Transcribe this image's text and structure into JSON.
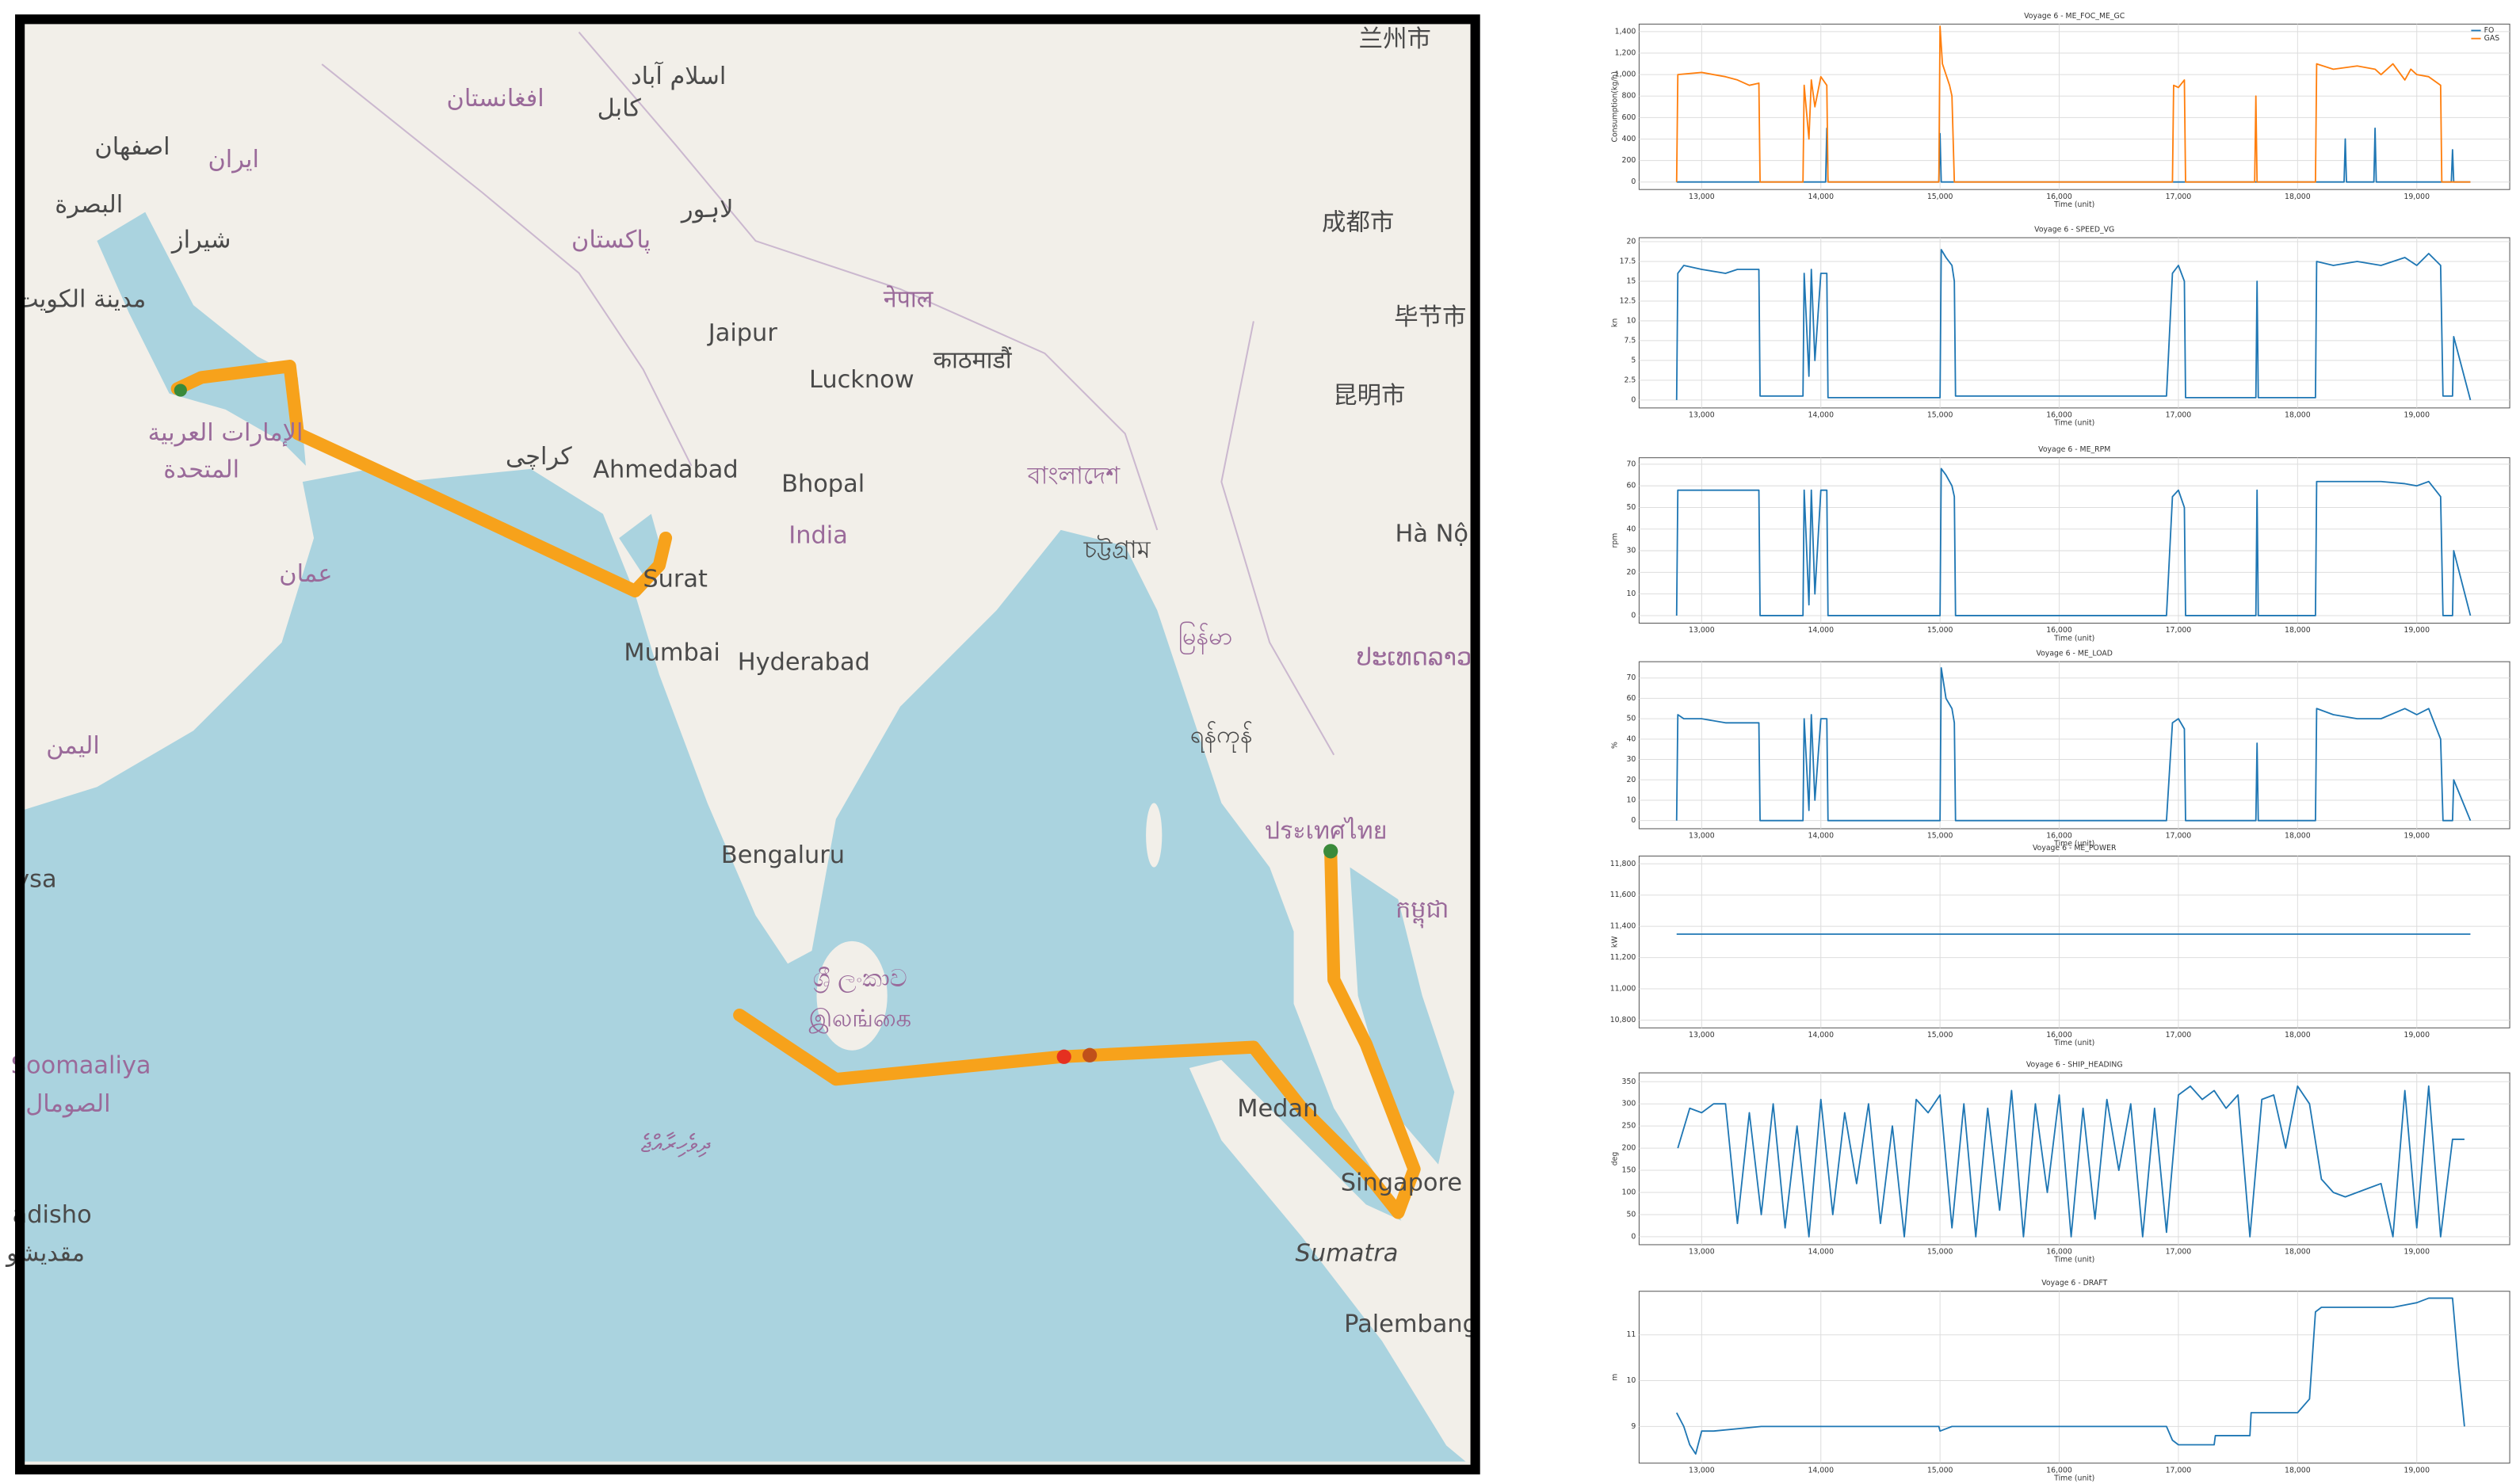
{
  "map": {
    "labels": [
      "اصفهان",
      "ایران",
      "البصرة",
      "شيراز",
      "مدينة الكويت",
      "افغانستان",
      "كابل",
      "اسلام آباد",
      "لاہور",
      "پاکستان",
      "नेपाल",
      "काठमाडौं",
      "Jaipur",
      "Lucknow",
      "كراچی",
      "Ahmedabad",
      "Bhopal",
      "India",
      "বাংলাদেশ",
      "চট্টগ্রাম",
      "Surat",
      "Mumbai",
      "Hyderabad",
      "الإمارات العربية",
      "المتحدة",
      "عمان",
      "اليمن",
      "မြန်မာ",
      "ရန်ကုန်",
      "ประเทศไทย",
      "Bengaluru",
      "ශ්‍රී ලංකාව",
      "இலங்கை",
      "Soomaaliya",
      "الصومال",
      "ދިވެހިރާއްޖެ",
      "Medan",
      "Singapore",
      "Sumatra",
      "Palembang",
      "adisho",
      "مقديشو",
      "成都市",
      "毕节市",
      "昆明市",
      "兰州市",
      "Hà Nội",
      "ປະເທດລາວ",
      "កម្ពុជា",
      "ysa"
    ]
  },
  "chart_data": [
    {
      "type": "line",
      "title": "Voyage 6 - ME_FOC_ME_GC",
      "xlabel": "Time (unit)",
      "ylabel": "Consumption(kg/h)",
      "grid": true,
      "legend": "upper right",
      "xlim": [
        12475,
        19780
      ],
      "xticks": [
        {
          "value": 13000,
          "label": "13,000"
        },
        {
          "value": 14000,
          "label": "14,000"
        },
        {
          "value": 15000,
          "label": "15,000"
        },
        {
          "value": 16000,
          "label": "16,000"
        },
        {
          "value": 17000,
          "label": "17,000"
        },
        {
          "value": 18000,
          "label": "18,000"
        },
        {
          "value": 19000,
          "label": "19,000"
        }
      ],
      "ylim": [
        -70,
        1470
      ],
      "yticks": [
        0,
        200,
        400,
        600,
        800,
        {
          "value": 1000,
          "label": "1,000"
        },
        {
          "value": 1200,
          "label": "1,200"
        },
        {
          "value": 1400,
          "label": "1,400"
        }
      ],
      "series": [
        {
          "name": "FO",
          "color": "#1f77b4",
          "x": [
            12790,
            14040,
            14050,
            14060,
            14990,
            15000,
            15010,
            18390,
            18400,
            18410,
            18640,
            18650,
            18660,
            19290,
            19300,
            19310,
            19450
          ],
          "values": [
            0,
            0,
            500,
            0,
            0,
            450,
            0,
            0,
            400,
            0,
            0,
            500,
            0,
            0,
            300,
            0,
            0
          ]
        },
        {
          "name": "GAS",
          "color": "#ff7f0e",
          "x": [
            12790,
            12800,
            13000,
            13200,
            13300,
            13400,
            13480,
            13490,
            13850,
            13860,
            13900,
            13920,
            13950,
            14000,
            14050,
            14060,
            14990,
            15000,
            15020,
            15050,
            15080,
            15100,
            15120,
            16950,
            16960,
            17000,
            17050,
            17060,
            17640,
            17650,
            17660,
            18150,
            18160,
            18300,
            18500,
            18650,
            18700,
            18800,
            18900,
            18950,
            19000,
            19100,
            19200,
            19210,
            19450
          ],
          "values": [
            0,
            1000,
            1020,
            980,
            950,
            900,
            920,
            0,
            0,
            900,
            400,
            950,
            700,
            980,
            900,
            0,
            0,
            1450,
            1100,
            1000,
            900,
            800,
            0,
            0,
            900,
            880,
            950,
            0,
            0,
            800,
            0,
            0,
            1100,
            1050,
            1080,
            1050,
            1000,
            1100,
            950,
            1050,
            1000,
            980,
            900,
            0,
            0
          ]
        }
      ]
    },
    {
      "type": "line",
      "title": "Voyage 6 - SPEED_VG",
      "xlabel": "Time (unit)",
      "ylabel": "kn",
      "grid": true,
      "color": "#1f77b4",
      "xlim": [
        12475,
        19780
      ],
      "xticks": [
        {
          "value": 13000,
          "label": "13,000"
        },
        {
          "value": 14000,
          "label": "14,000"
        },
        {
          "value": 15000,
          "label": "15,000"
        },
        {
          "value": 16000,
          "label": "16,000"
        },
        {
          "value": 17000,
          "label": "17,000"
        },
        {
          "value": 18000,
          "label": "18,000"
        },
        {
          "value": 19000,
          "label": "19,000"
        }
      ],
      "ylim": [
        -1,
        20.5
      ],
      "yticks": [
        0,
        2.5,
        5,
        7.5,
        10,
        12.5,
        15,
        17.5,
        20
      ],
      "x": [
        12790,
        12800,
        12850,
        13000,
        13200,
        13300,
        13480,
        13490,
        13850,
        13860,
        13900,
        13920,
        13950,
        14000,
        14050,
        14060,
        15000,
        15010,
        15050,
        15100,
        15120,
        15130,
        16900,
        16950,
        17000,
        17050,
        17060,
        17650,
        17660,
        17670,
        18150,
        18160,
        18300,
        18500,
        18700,
        18900,
        19000,
        19100,
        19200,
        19220,
        19300,
        19310,
        19450
      ],
      "values": [
        0,
        16,
        17,
        16.5,
        16,
        16.5,
        16.5,
        0.5,
        0.5,
        16,
        3,
        16.5,
        5,
        16,
        16,
        0.3,
        0.3,
        19,
        18,
        17,
        15,
        0.5,
        0.5,
        16,
        17,
        15,
        0.3,
        0.3,
        15,
        0.3,
        0.3,
        17.5,
        17,
        17.5,
        17,
        18,
        17,
        18.5,
        17,
        0.5,
        0.5,
        8,
        0
      ]
    },
    {
      "type": "line",
      "title": "Voyage 6 - ME_RPM",
      "xlabel": "Time (unit)",
      "ylabel": "rpm",
      "grid": true,
      "color": "#1f77b4",
      "xlim": [
        12475,
        19780
      ],
      "xticks": [
        {
          "value": 13000,
          "label": "13,000"
        },
        {
          "value": 14000,
          "label": "14,000"
        },
        {
          "value": 15000,
          "label": "15,000"
        },
        {
          "value": 16000,
          "label": "16,000"
        },
        {
          "value": 17000,
          "label": "17,000"
        },
        {
          "value": 18000,
          "label": "18,000"
        },
        {
          "value": 19000,
          "label": "19,000"
        }
      ],
      "ylim": [
        -3.5,
        73
      ],
      "yticks": [
        0,
        10,
        20,
        30,
        40,
        50,
        60,
        70
      ],
      "x": [
        12790,
        12800,
        12850,
        13000,
        13200,
        13300,
        13480,
        13490,
        13850,
        13860,
        13900,
        13920,
        13950,
        14000,
        14050,
        14060,
        15000,
        15010,
        15050,
        15100,
        15120,
        15130,
        16900,
        16950,
        17000,
        17050,
        17060,
        17650,
        17660,
        17670,
        18150,
        18160,
        18300,
        18500,
        18700,
        18900,
        19000,
        19100,
        19200,
        19220,
        19300,
        19310,
        19450
      ],
      "values": [
        0,
        58,
        58,
        58,
        58,
        58,
        58,
        0,
        0,
        58,
        5,
        58,
        10,
        58,
        58,
        0,
        0,
        68,
        65,
        60,
        55,
        0,
        0,
        55,
        58,
        50,
        0,
        0,
        58,
        0,
        0,
        62,
        62,
        62,
        62,
        61,
        60,
        62,
        55,
        0,
        0,
        30,
        0
      ]
    },
    {
      "type": "line",
      "title": "Voyage 6 - ME_LOAD",
      "xlabel": "Time (unit)",
      "ylabel": "%",
      "grid": true,
      "color": "#1f77b4",
      "xlim": [
        12475,
        19780
      ],
      "xticks": [
        {
          "value": 13000,
          "label": "13,000"
        },
        {
          "value": 14000,
          "label": "14,000"
        },
        {
          "value": 15000,
          "label": "15,000"
        },
        {
          "value": 16000,
          "label": "16,000"
        },
        {
          "value": 17000,
          "label": "17,000"
        },
        {
          "value": 18000,
          "label": "18,000"
        },
        {
          "value": 19000,
          "label": "19,000"
        }
      ],
      "ylim": [
        -4,
        78
      ],
      "yticks": [
        0,
        10,
        20,
        30,
        40,
        50,
        60,
        70
      ],
      "x": [
        12790,
        12800,
        12850,
        13000,
        13200,
        13300,
        13480,
        13490,
        13850,
        13860,
        13900,
        13920,
        13950,
        14000,
        14050,
        14060,
        15000,
        15010,
        15050,
        15100,
        15120,
        15130,
        16900,
        16950,
        17000,
        17050,
        17060,
        17650,
        17660,
        17670,
        18150,
        18160,
        18300,
        18500,
        18700,
        18900,
        19000,
        19100,
        19200,
        19220,
        19300,
        19310,
        19450
      ],
      "values": [
        0,
        52,
        50,
        50,
        48,
        48,
        48,
        0,
        0,
        50,
        5,
        52,
        10,
        50,
        50,
        0,
        0,
        75,
        60,
        55,
        48,
        0,
        0,
        48,
        50,
        45,
        0,
        0,
        38,
        0,
        0,
        55,
        52,
        50,
        50,
        55,
        52,
        55,
        40,
        0,
        0,
        20,
        0
      ]
    },
    {
      "type": "line",
      "title": "Voyage 6 - ME_POWER",
      "xlabel": "Time (unit)",
      "ylabel": "kW",
      "grid": true,
      "color": "#1f77b4",
      "xlim": [
        12475,
        19780
      ],
      "xticks": [
        {
          "value": 13000,
          "label": "13,000"
        },
        {
          "value": 14000,
          "label": "14,000"
        },
        {
          "value": 15000,
          "label": "15,000"
        },
        {
          "value": 16000,
          "label": "16,000"
        },
        {
          "value": 17000,
          "label": "17,000"
        },
        {
          "value": 18000,
          "label": "18,000"
        },
        {
          "value": 19000,
          "label": "19,000"
        }
      ],
      "ylim": [
        10750,
        11850
      ],
      "yticks": [
        {
          "value": 10800,
          "label": "10,800"
        },
        {
          "value": 11000,
          "label": "11,000"
        },
        {
          "value": 11200,
          "label": "11,200"
        },
        {
          "value": 11400,
          "label": "11,400"
        },
        {
          "value": 11600,
          "label": "11,600"
        },
        {
          "value": 11800,
          "label": "11,800"
        }
      ],
      "x": [
        12790,
        19450
      ],
      "values": [
        11350,
        11350
      ]
    },
    {
      "type": "line",
      "title": "Voyage 6 - SHIP_HEADING",
      "xlabel": "Time (unit)",
      "ylabel": "deg",
      "grid": true,
      "color": "#1f77b4",
      "xlim": [
        12475,
        19780
      ],
      "xticks": [
        {
          "value": 13000,
          "label": "13,000"
        },
        {
          "value": 14000,
          "label": "14,000"
        },
        {
          "value": 15000,
          "label": "15,000"
        },
        {
          "value": 16000,
          "label": "16,000"
        },
        {
          "value": 17000,
          "label": "17,000"
        },
        {
          "value": 18000,
          "label": "18,000"
        },
        {
          "value": 19000,
          "label": "19,000"
        }
      ],
      "ylim": [
        -18,
        370
      ],
      "yticks": [
        0,
        50,
        100,
        150,
        200,
        250,
        300,
        350
      ],
      "x": [
        12800,
        12900,
        13000,
        13100,
        13200,
        13300,
        13400,
        13500,
        13600,
        13700,
        13800,
        13900,
        14000,
        14100,
        14200,
        14300,
        14400,
        14500,
        14600,
        14700,
        14800,
        14900,
        15000,
        15100,
        15200,
        15300,
        15400,
        15500,
        15600,
        15700,
        15800,
        15900,
        16000,
        16100,
        16200,
        16300,
        16400,
        16500,
        16600,
        16700,
        16800,
        16900,
        17000,
        17100,
        17200,
        17300,
        17400,
        17500,
        17600,
        17700,
        17800,
        17900,
        18000,
        18100,
        18200,
        18300,
        18400,
        18500,
        18600,
        18700,
        18800,
        18900,
        19000,
        19100,
        19200,
        19300,
        19400
      ],
      "values": [
        200,
        290,
        280,
        300,
        300,
        30,
        280,
        50,
        300,
        20,
        250,
        0,
        310,
        50,
        280,
        120,
        300,
        30,
        250,
        0,
        310,
        280,
        320,
        20,
        300,
        0,
        290,
        60,
        330,
        0,
        300,
        100,
        320,
        0,
        290,
        40,
        310,
        150,
        300,
        0,
        290,
        10,
        320,
        340,
        310,
        330,
        290,
        320,
        0,
        310,
        320,
        200,
        340,
        300,
        130,
        100,
        90,
        100,
        110,
        120,
        0,
        330,
        20,
        340,
        0,
        220,
        220
      ]
    },
    {
      "type": "line",
      "title": "Voyage 6 - DRAFT",
      "xlabel": "Time (unit)",
      "ylabel": "m",
      "grid": true,
      "color": "#1f77b4",
      "xlim": [
        12475,
        19780
      ],
      "xticks": [
        {
          "value": 13000,
          "label": "13,000"
        },
        {
          "value": 14000,
          "label": "14,000"
        },
        {
          "value": 15000,
          "label": "15,000"
        },
        {
          "value": 16000,
          "label": "16,000"
        },
        {
          "value": 17000,
          "label": "17,000"
        },
        {
          "value": 18000,
          "label": "18,000"
        },
        {
          "value": 19000,
          "label": "19,000"
        }
      ],
      "ylim": [
        8.2,
        11.95
      ],
      "yticks": [
        9,
        10,
        11
      ],
      "x": [
        12790,
        12850,
        12900,
        12950,
        13000,
        13100,
        13500,
        14000,
        14500,
        14990,
        15000,
        15100,
        15200,
        16000,
        16500,
        16900,
        16950,
        17000,
        17300,
        17310,
        17600,
        17610,
        18000,
        18100,
        18150,
        18200,
        18500,
        18800,
        19000,
        19100,
        19200,
        19300,
        19350,
        19400
      ],
      "values": [
        9.3,
        9.0,
        8.6,
        8.4,
        8.9,
        8.9,
        9.0,
        9.0,
        9.0,
        9.0,
        8.9,
        9.0,
        9.0,
        9.0,
        9.0,
        9.0,
        8.7,
        8.6,
        8.6,
        8.8,
        8.8,
        9.3,
        9.3,
        9.6,
        11.5,
        11.6,
        11.6,
        11.6,
        11.7,
        11.8,
        11.8,
        11.8,
        10.3,
        9.0
      ]
    }
  ]
}
